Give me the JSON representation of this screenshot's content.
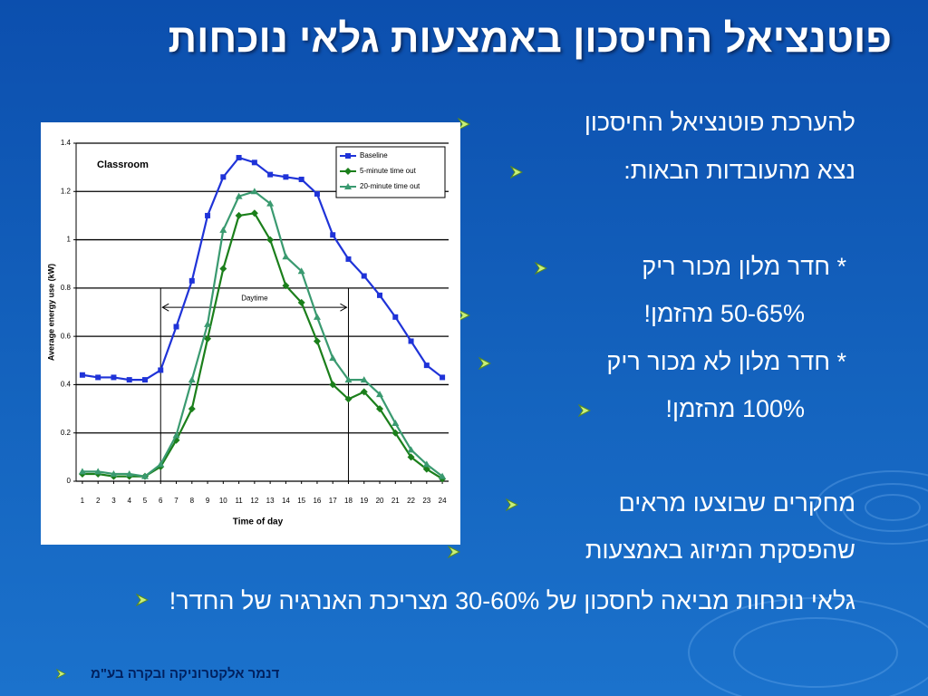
{
  "slide": {
    "title": "פוטנציאל החיסכון באמצעות גלאי נוכחות",
    "bullets": [
      "להערכת פוטנציאל החיסכון",
      "נצא מהעובדות הבאות:",
      "* חדר מלון מכור ריק",
      "50-65%  מהזמן!",
      "* חדר מלון לא מכור ריק",
      "100% מהזמן!",
      "מחקרים שבוצעו מראים",
      "שהפסקת המיזוג באמצעות",
      "גלאי נוכחות  מביאה לחסכון של 30-60% מצריכת האנרגיה של החדר!"
    ],
    "footer": "דנמר אלקטרוניקה ובקרה בע\"מ"
  },
  "chart_data": {
    "type": "line",
    "title": "Classroom",
    "x_label": "Time of day",
    "y_label": "Average energy use (kW)",
    "x": [
      1,
      2,
      3,
      4,
      5,
      6,
      7,
      8,
      9,
      10,
      11,
      12,
      13,
      14,
      15,
      16,
      17,
      18,
      19,
      20,
      21,
      22,
      23,
      24
    ],
    "xlim": [
      0.6,
      24.4
    ],
    "xticks": [
      1,
      2,
      3,
      4,
      5,
      6,
      7,
      8,
      9,
      10,
      11,
      12,
      13,
      14,
      15,
      16,
      17,
      18,
      19,
      20,
      21,
      22,
      23,
      24
    ],
    "ylim": [
      0,
      1.4
    ],
    "yticks": [
      0,
      0.2,
      0.4,
      0.6,
      0.8,
      1,
      1.2,
      1.4
    ],
    "grid": true,
    "legend": "top-right",
    "annotation": {
      "label": "Daytime",
      "start": 6,
      "end": 18
    },
    "series": [
      {
        "name": "Baseline",
        "color": "#1f33d8",
        "marker": "square",
        "values": [
          0.44,
          0.43,
          0.43,
          0.42,
          0.42,
          0.46,
          0.64,
          0.83,
          1.1,
          1.26,
          1.34,
          1.32,
          1.27,
          1.26,
          1.25,
          1.19,
          1.02,
          0.92,
          0.85,
          0.77,
          0.68,
          0.58,
          0.48,
          0.43
        ]
      },
      {
        "name": "5-minute time out",
        "color": "#1b7f1b",
        "marker": "diamond",
        "values": [
          0.03,
          0.03,
          0.02,
          0.02,
          0.02,
          0.06,
          0.17,
          0.3,
          0.59,
          0.88,
          1.1,
          1.11,
          1.0,
          0.81,
          0.74,
          0.58,
          0.4,
          0.34,
          0.37,
          0.3,
          0.2,
          0.1,
          0.05,
          0.01
        ]
      },
      {
        "name": "20-minute time out",
        "color": "#3a9a70",
        "marker": "triangle",
        "values": [
          0.04,
          0.04,
          0.03,
          0.03,
          0.02,
          0.07,
          0.19,
          0.42,
          0.65,
          1.04,
          1.18,
          1.2,
          1.15,
          0.93,
          0.87,
          0.68,
          0.51,
          0.42,
          0.42,
          0.36,
          0.24,
          0.13,
          0.07,
          0.02
        ]
      }
    ]
  }
}
